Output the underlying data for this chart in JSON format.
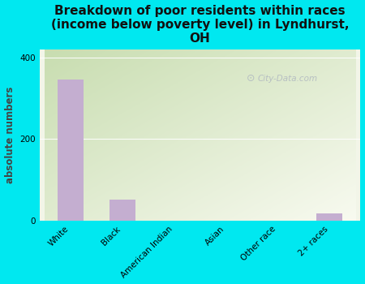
{
  "categories": [
    "White",
    "Black",
    "American Indian",
    "Asian",
    "Other race",
    "2+ races"
  ],
  "values": [
    345,
    52,
    0,
    0,
    0,
    18
  ],
  "bar_color": "#c4aed0",
  "title": "Breakdown of poor residents within races\n(income below poverty level) in Lyndhurst,\nOH",
  "ylabel": "absolute numbers",
  "ylim": [
    0,
    420
  ],
  "yticks": [
    0,
    200,
    400
  ],
  "background_outer": "#00e8f0",
  "grad_color_topleft": "#c8ddb0",
  "grad_color_bottomright": "#f2f5e8",
  "watermark": "City-Data.com",
  "title_fontsize": 11,
  "ylabel_fontsize": 8.5,
  "tick_fontsize": 7.5,
  "bar_width": 0.5
}
